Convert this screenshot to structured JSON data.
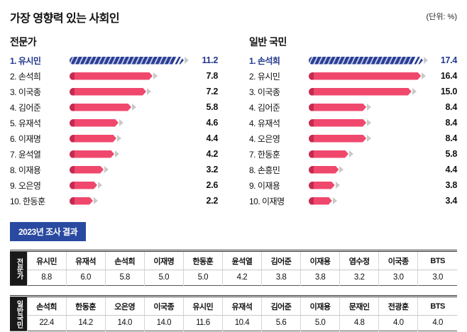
{
  "title": "가장 영향력 있는 사회인",
  "unit_label": "(단위: %)",
  "badge_2023": "2023년 조사 결과",
  "colors": {
    "first_place_blue": "#20368c",
    "bar_pink": "#f0486d",
    "bar_cap_red": "#c52a4f",
    "striped_bar_navy": "#2b3e92",
    "badge_bg": "#2a4aa1",
    "tip_gray": "#c9c9c9"
  },
  "chart_data": [
    {
      "type": "bar",
      "orientation": "horizontal",
      "header": "전문가",
      "max": 11.2,
      "items": [
        {
          "rank": "1",
          "name": "유시민",
          "label": "1. 유시민",
          "value": 11.2,
          "display": "11.2",
          "highlight": true
        },
        {
          "rank": "2",
          "name": "손석희",
          "label": "2. 손석희",
          "value": 7.8,
          "display": "7.8",
          "highlight": false
        },
        {
          "rank": "3",
          "name": "이국종",
          "label": "3. 이국종",
          "value": 7.2,
          "display": "7.2",
          "highlight": false
        },
        {
          "rank": "4",
          "name": "김어준",
          "label": "4. 김어준",
          "value": 5.8,
          "display": "5.8",
          "highlight": false
        },
        {
          "rank": "5",
          "name": "유재석",
          "label": "5. 유재석",
          "value": 4.6,
          "display": "4.6",
          "highlight": false
        },
        {
          "rank": "6",
          "name": "이재명",
          "label": "6. 이재명",
          "value": 4.4,
          "display": "4.4",
          "highlight": false
        },
        {
          "rank": "7",
          "name": "윤석열",
          "label": "7. 윤석열",
          "value": 4.2,
          "display": "4.2",
          "highlight": false
        },
        {
          "rank": "8",
          "name": "이재용",
          "label": "8. 이재용",
          "value": 3.2,
          "display": "3.2",
          "highlight": false
        },
        {
          "rank": "9",
          "name": "오은영",
          "label": "9. 오은영",
          "value": 2.6,
          "display": "2.6",
          "highlight": false
        },
        {
          "rank": "10",
          "name": "한동훈",
          "label": "10. 한동훈",
          "value": 2.2,
          "display": "2.2",
          "highlight": false
        }
      ]
    },
    {
      "type": "bar",
      "orientation": "horizontal",
      "header": "일반 국민",
      "max": 17.4,
      "items": [
        {
          "rank": "1",
          "name": "손석희",
          "label": "1. 손석희",
          "value": 17.4,
          "display": "17.4",
          "highlight": true
        },
        {
          "rank": "2",
          "name": "유시민",
          "label": "2. 유시민",
          "value": 16.4,
          "display": "16.4",
          "highlight": false
        },
        {
          "rank": "3",
          "name": "이국종",
          "label": "3. 이국종",
          "value": 15.0,
          "display": "15.0",
          "highlight": false
        },
        {
          "rank": "4",
          "name": "김어준",
          "label": "4. 김어준",
          "value": 8.4,
          "display": "8.4",
          "highlight": false
        },
        {
          "rank": "4",
          "name": "유재석",
          "label": "4. 유재석",
          "value": 8.4,
          "display": "8.4",
          "highlight": false
        },
        {
          "rank": "4",
          "name": "오은영",
          "label": "4. 오은영",
          "value": 8.4,
          "display": "8.4",
          "highlight": false
        },
        {
          "rank": "7",
          "name": "한동훈",
          "label": "7. 한동훈",
          "value": 5.8,
          "display": "5.8",
          "highlight": false
        },
        {
          "rank": "8",
          "name": "손흥민",
          "label": "8. 손흥민",
          "value": 4.4,
          "display": "4.4",
          "highlight": false
        },
        {
          "rank": "9",
          "name": "이재용",
          "label": "9. 이재용",
          "value": 3.8,
          "display": "3.8",
          "highlight": false
        },
        {
          "rank": "10",
          "name": "이재명",
          "label": "10. 이재명",
          "value": 3.4,
          "display": "3.4",
          "highlight": false
        }
      ]
    },
    {
      "type": "table",
      "row_header": "전문가",
      "columns": [
        "유시민",
        "유재석",
        "손석희",
        "이재명",
        "한동훈",
        "윤석열",
        "김어준",
        "이재용",
        "염수정",
        "이국종",
        "BTS"
      ],
      "values": [
        "8.8",
        "6.0",
        "5.8",
        "5.0",
        "5.0",
        "4.2",
        "3.8",
        "3.8",
        "3.2",
        "3.0",
        "3.0"
      ]
    },
    {
      "type": "table",
      "row_header": "일반국민",
      "columns": [
        "손석희",
        "한동훈",
        "오은영",
        "이국종",
        "유시민",
        "유재석",
        "김어준",
        "이재용",
        "문재인",
        "전광훈",
        "BTS"
      ],
      "values": [
        "22.4",
        "14.2",
        "14.0",
        "14.0",
        "11.6",
        "10.4",
        "5.6",
        "5.0",
        "4.8",
        "4.0",
        "4.0"
      ]
    }
  ]
}
